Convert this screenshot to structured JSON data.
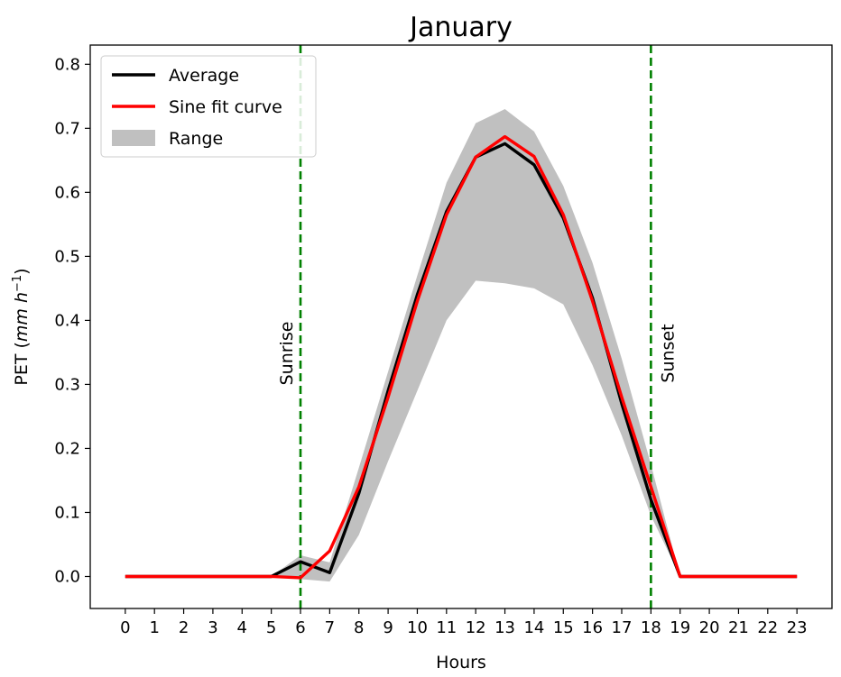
{
  "chart_data": {
    "type": "line",
    "title": "January",
    "xlabel": "Hours",
    "ylabel": "PET (mm h⁻¹)",
    "xlim": [
      -1.2,
      24.2
    ],
    "ylim": [
      -0.05,
      0.83
    ],
    "x": [
      0,
      1,
      2,
      3,
      4,
      5,
      6,
      7,
      8,
      9,
      10,
      11,
      12,
      13,
      14,
      15,
      16,
      17,
      18,
      19,
      20,
      21,
      22,
      23
    ],
    "x_ticks": [
      "0",
      "1",
      "2",
      "3",
      "4",
      "5",
      "6",
      "7",
      "8",
      "9",
      "10",
      "11",
      "12",
      "13",
      "14",
      "15",
      "16",
      "17",
      "18",
      "19",
      "20",
      "21",
      "22",
      "23"
    ],
    "y_ticks": [
      "0.0",
      "0.1",
      "0.2",
      "0.3",
      "0.4",
      "0.5",
      "0.6",
      "0.7",
      "0.8"
    ],
    "y_tick_values": [
      0.0,
      0.1,
      0.2,
      0.3,
      0.4,
      0.5,
      0.6,
      0.7,
      0.8
    ],
    "series": [
      {
        "name": "Average",
        "color": "#000000",
        "values": [
          0,
          0,
          0,
          0,
          0,
          0,
          0.023,
          0.006,
          0.13,
          0.29,
          0.44,
          0.57,
          0.655,
          0.676,
          0.643,
          0.56,
          0.435,
          0.27,
          0.12,
          0,
          0,
          0,
          0,
          0
        ]
      },
      {
        "name": "Sine fit curve",
        "color": "#ff0000",
        "values": [
          0,
          0,
          0,
          0,
          0,
          0,
          -0.002,
          0.04,
          0.14,
          0.28,
          0.43,
          0.565,
          0.655,
          0.687,
          0.656,
          0.565,
          0.43,
          0.28,
          0.14,
          0,
          0,
          0,
          0,
          0
        ]
      }
    ],
    "range": {
      "name": "Range",
      "color": "#c0c0c0",
      "x": [
        5,
        6,
        7,
        8,
        9,
        10,
        11,
        12,
        13,
        14,
        15,
        16,
        17,
        18,
        19
      ],
      "upper": [
        0.0,
        0.033,
        0.022,
        0.17,
        0.32,
        0.47,
        0.615,
        0.708,
        0.73,
        0.695,
        0.61,
        0.49,
        0.34,
        0.175,
        0.0
      ],
      "lower": [
        0.0,
        -0.004,
        -0.008,
        0.065,
        0.18,
        0.29,
        0.4,
        0.462,
        0.458,
        0.45,
        0.425,
        0.33,
        0.22,
        0.095,
        0.0
      ]
    },
    "vlines": [
      {
        "x": 6,
        "label": "Sunrise",
        "color": "#008000"
      },
      {
        "x": 18,
        "label": "Sunset",
        "color": "#008000"
      }
    ],
    "legend": "upper-left",
    "grid": false
  }
}
